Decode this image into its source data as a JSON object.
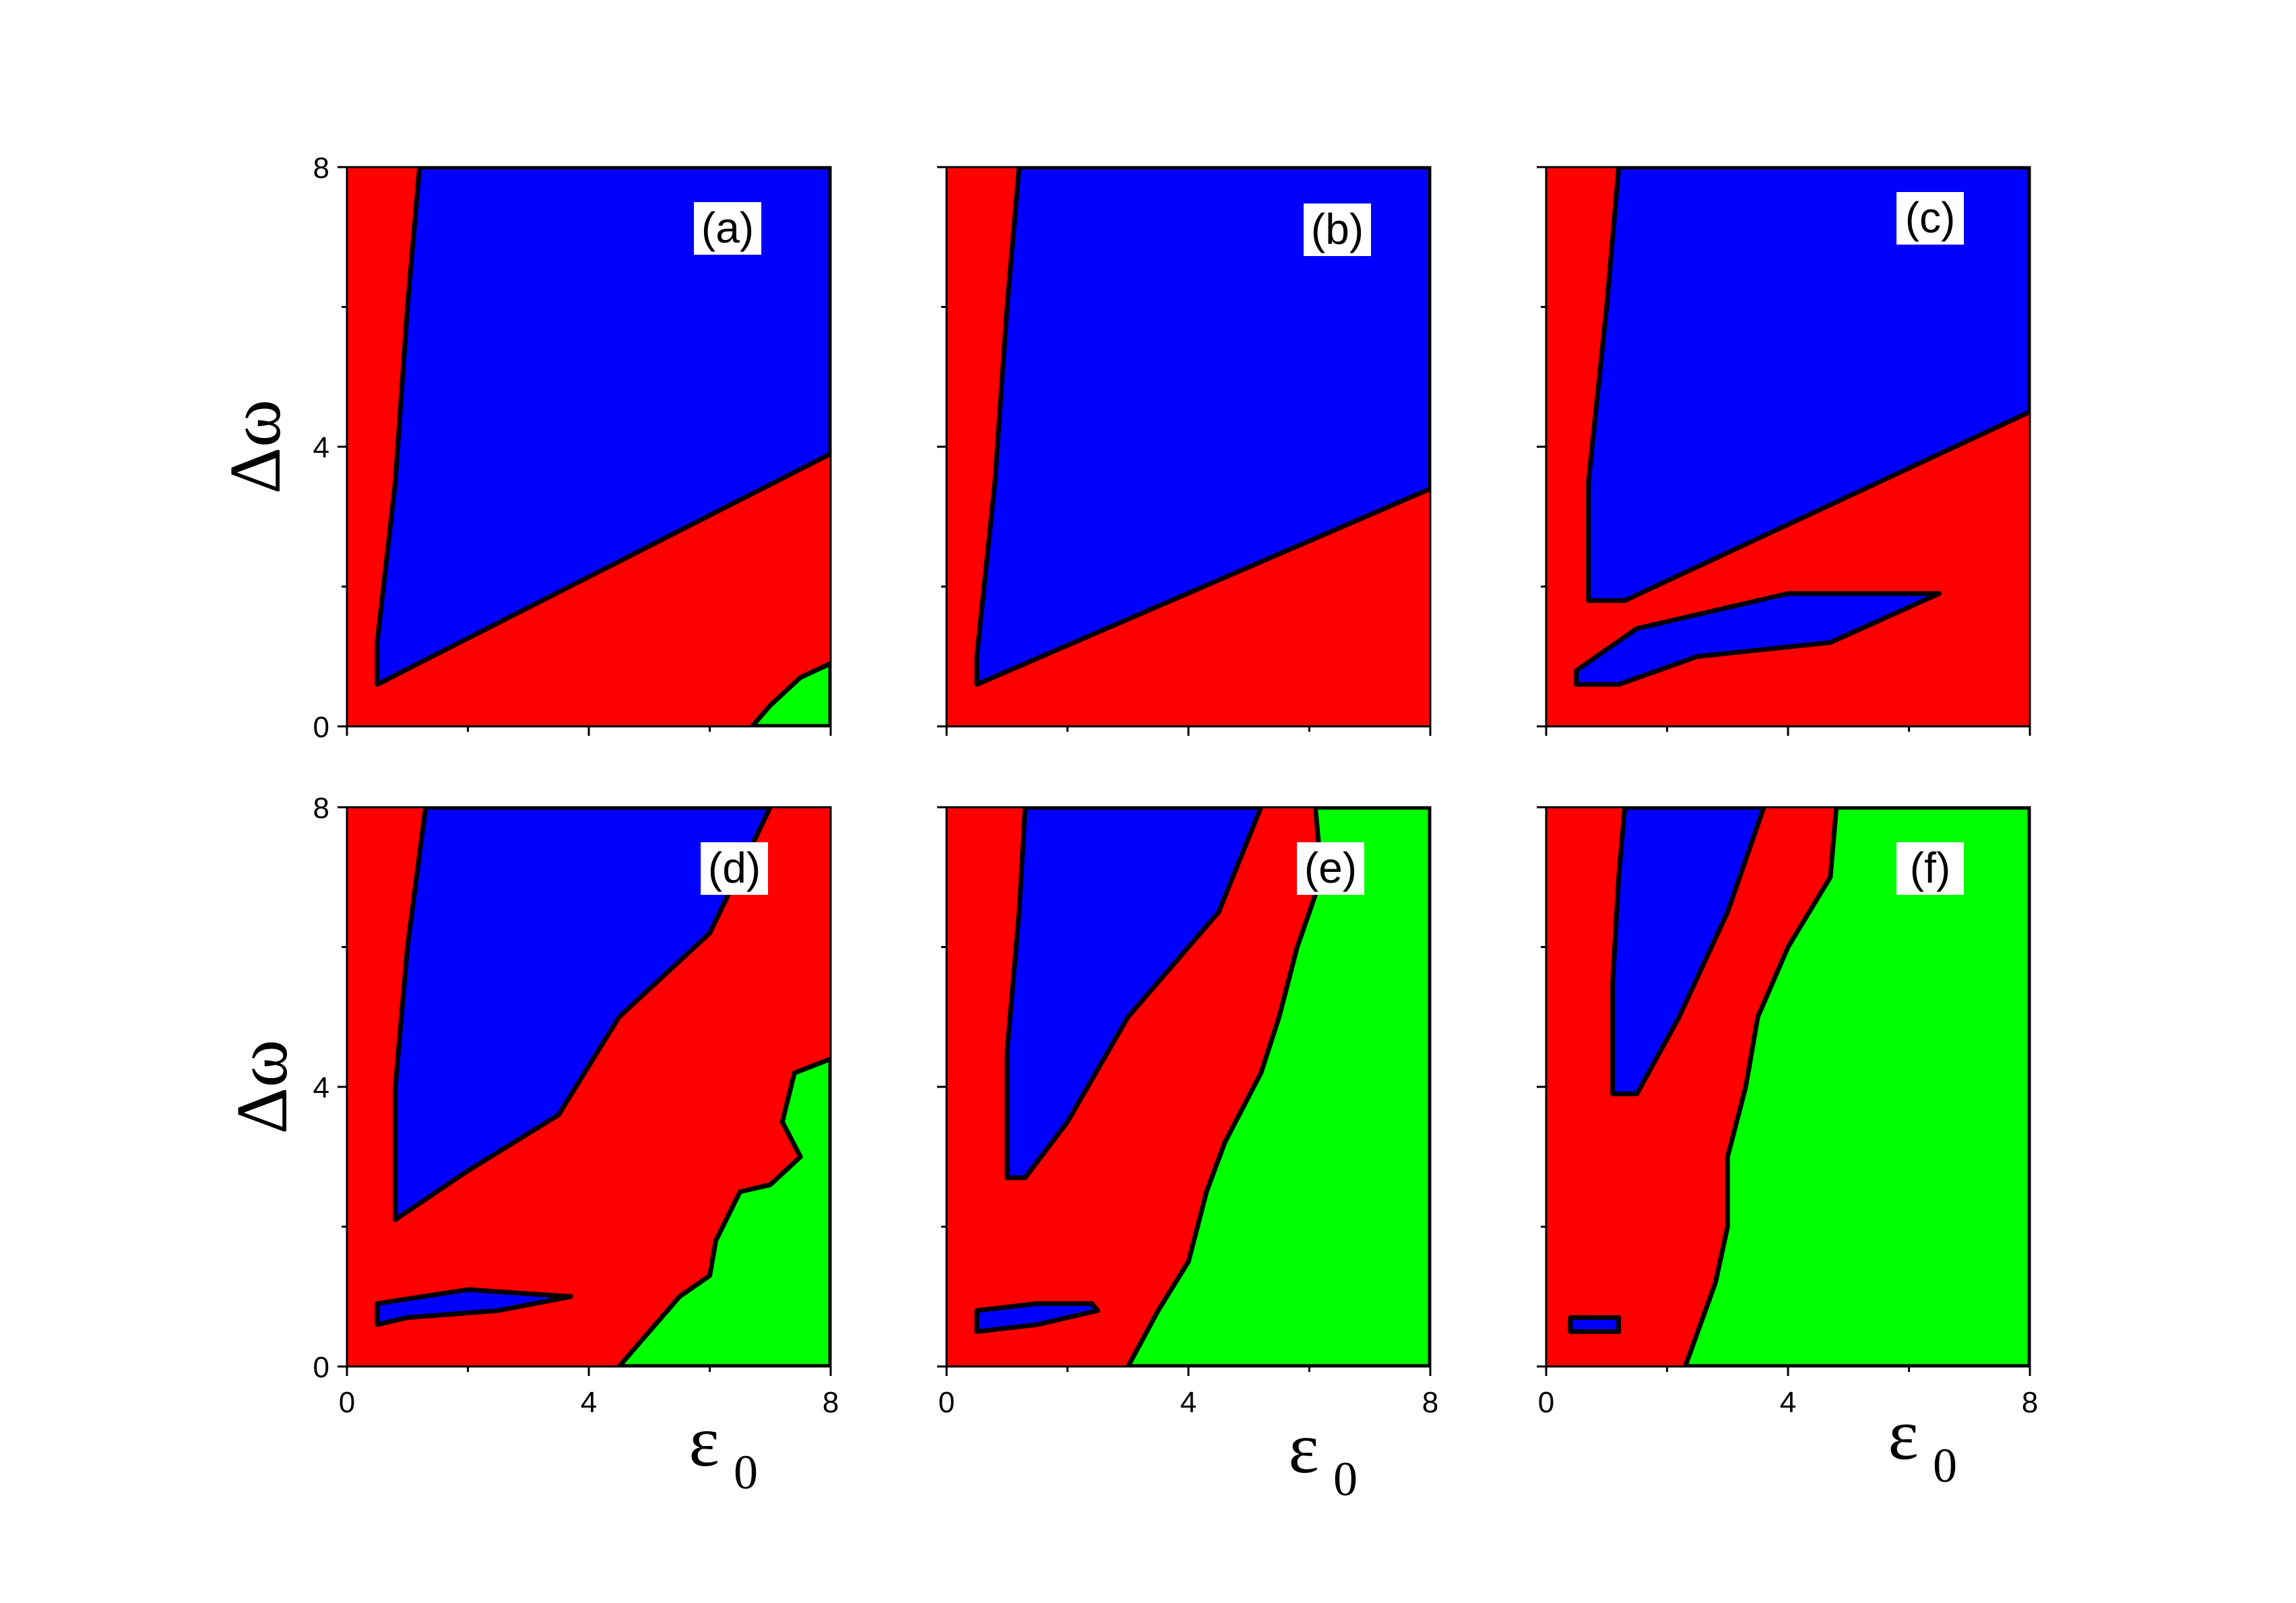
{
  "chart_data": {
    "type": "heatmap",
    "layout": "2x3 grid of panels",
    "xlabel": "ε",
    "xlabel_subscript": "0",
    "ylabel": "Δω",
    "xlim": [
      0,
      8
    ],
    "ylim": [
      0,
      8
    ],
    "x_ticks": [
      "0",
      "4",
      "8"
    ],
    "y_ticks": [
      "0",
      "4",
      "8"
    ],
    "colors": {
      "red": "#ff0000",
      "blue": "#0000ff",
      "green": "#00ff00",
      "boundary": "#000000"
    },
    "panels": [
      {
        "label": "(a)",
        "regions": [
          {
            "color": "red",
            "polygon": [
              [
                0,
                0
              ],
              [
                8,
                0
              ],
              [
                8,
                8
              ],
              [
                0,
                8
              ]
            ]
          },
          {
            "color": "blue",
            "polygon": [
              [
                1.2,
                8
              ],
              [
                8,
                8
              ],
              [
                8,
                3.9
              ],
              [
                0.5,
                0.6
              ],
              [
                0.5,
                1.2
              ],
              [
                0.8,
                3.5
              ],
              [
                1.0,
                6
              ]
            ]
          },
          {
            "color": "green",
            "polygon": [
              [
                6.7,
                0
              ],
              [
                8,
                0
              ],
              [
                8,
                0.9
              ],
              [
                7.5,
                0.7
              ],
              [
                7.0,
                0.3
              ]
            ]
          }
        ]
      },
      {
        "label": "(b)",
        "regions": [
          {
            "color": "red",
            "polygon": [
              [
                0,
                0
              ],
              [
                8,
                0
              ],
              [
                8,
                8
              ],
              [
                0,
                8
              ]
            ]
          },
          {
            "color": "blue",
            "polygon": [
              [
                1.2,
                8
              ],
              [
                8,
                8
              ],
              [
                8,
                3.4
              ],
              [
                0.5,
                0.6
              ],
              [
                0.5,
                1.0
              ],
              [
                0.8,
                3.5
              ],
              [
                1.0,
                6
              ]
            ]
          }
        ]
      },
      {
        "label": "(c)",
        "regions": [
          {
            "color": "red",
            "polygon": [
              [
                0,
                0
              ],
              [
                8,
                0
              ],
              [
                8,
                8
              ],
              [
                0,
                8
              ]
            ]
          },
          {
            "color": "blue",
            "polygon": [
              [
                1.2,
                8
              ],
              [
                8,
                8
              ],
              [
                8,
                4.5
              ],
              [
                1.3,
                1.8
              ],
              [
                0.7,
                1.8
              ],
              [
                0.7,
                3.5
              ],
              [
                1.0,
                6
              ]
            ]
          },
          {
            "color": "blue",
            "polygon": [
              [
                0.5,
                0.6
              ],
              [
                1.2,
                0.6
              ],
              [
                2.5,
                1.0
              ],
              [
                4.7,
                1.2
              ],
              [
                6.5,
                1.9
              ],
              [
                4.0,
                1.9
              ],
              [
                1.5,
                1.4
              ],
              [
                0.5,
                0.8
              ]
            ]
          }
        ]
      },
      {
        "label": "(d)",
        "regions": [
          {
            "color": "red",
            "polygon": [
              [
                0,
                0
              ],
              [
                8,
                0
              ],
              [
                8,
                8
              ],
              [
                0,
                8
              ]
            ]
          },
          {
            "color": "blue",
            "polygon": [
              [
                1.3,
                8
              ],
              [
                7.0,
                8
              ],
              [
                6.0,
                6.2
              ],
              [
                4.5,
                5.0
              ],
              [
                3.5,
                3.6
              ],
              [
                2.0,
                2.8
              ],
              [
                0.8,
                2.1
              ],
              [
                0.8,
                4.0
              ],
              [
                1.0,
                6.0
              ]
            ]
          },
          {
            "color": "blue",
            "polygon": [
              [
                0.5,
                0.6
              ],
              [
                1.0,
                0.7
              ],
              [
                2.5,
                0.8
              ],
              [
                3.7,
                1.0
              ],
              [
                2.0,
                1.1
              ],
              [
                0.5,
                0.9
              ]
            ]
          },
          {
            "color": "green",
            "polygon": [
              [
                4.5,
                0
              ],
              [
                8,
                0
              ],
              [
                8,
                4.4
              ],
              [
                7.4,
                4.2
              ],
              [
                7.2,
                3.5
              ],
              [
                7.5,
                3.0
              ],
              [
                7.0,
                2.6
              ],
              [
                6.5,
                2.5
              ],
              [
                6.1,
                1.8
              ],
              [
                6.0,
                1.3
              ],
              [
                5.5,
                1.0
              ],
              [
                5.0,
                0.5
              ]
            ]
          }
        ]
      },
      {
        "label": "(e)",
        "regions": [
          {
            "color": "red",
            "polygon": [
              [
                0,
                0
              ],
              [
                8,
                0
              ],
              [
                8,
                8
              ],
              [
                0,
                8
              ]
            ]
          },
          {
            "color": "blue",
            "polygon": [
              [
                1.3,
                8
              ],
              [
                5.2,
                8
              ],
              [
                4.5,
                6.5
              ],
              [
                3.0,
                5.0
              ],
              [
                2.0,
                3.5
              ],
              [
                1.3,
                2.7
              ],
              [
                1.0,
                2.7
              ],
              [
                1.0,
                4.5
              ],
              [
                1.2,
                6.5
              ]
            ]
          },
          {
            "color": "blue",
            "polygon": [
              [
                0.5,
                0.5
              ],
              [
                1.5,
                0.6
              ],
              [
                2.5,
                0.8
              ],
              [
                2.4,
                0.9
              ],
              [
                1.5,
                0.9
              ],
              [
                0.5,
                0.8
              ]
            ]
          },
          {
            "color": "green",
            "polygon": [
              [
                3.0,
                0
              ],
              [
                8,
                0
              ],
              [
                8,
                8
              ],
              [
                6.1,
                8
              ],
              [
                6.2,
                7.0
              ],
              [
                5.8,
                6.0
              ],
              [
                5.5,
                5.0
              ],
              [
                5.2,
                4.2
              ],
              [
                4.6,
                3.2
              ],
              [
                4.3,
                2.5
              ],
              [
                4.0,
                1.5
              ],
              [
                3.5,
                0.8
              ]
            ]
          }
        ]
      },
      {
        "label": "(f)",
        "regions": [
          {
            "color": "red",
            "polygon": [
              [
                0,
                0
              ],
              [
                8,
                0
              ],
              [
                8,
                8
              ],
              [
                0,
                8
              ]
            ]
          },
          {
            "color": "blue",
            "polygon": [
              [
                1.3,
                8
              ],
              [
                3.6,
                8
              ],
              [
                3.0,
                6.5
              ],
              [
                2.2,
                5.0
              ],
              [
                1.5,
                3.9
              ],
              [
                1.1,
                3.9
              ],
              [
                1.1,
                5.5
              ],
              [
                1.2,
                7.0
              ]
            ]
          },
          {
            "color": "blue",
            "polygon": [
              [
                0.4,
                0.5
              ],
              [
                1.2,
                0.5
              ],
              [
                1.2,
                0.7
              ],
              [
                0.4,
                0.7
              ]
            ]
          },
          {
            "color": "green",
            "polygon": [
              [
                2.3,
                0
              ],
              [
                8,
                0
              ],
              [
                8,
                8
              ],
              [
                4.8,
                8
              ],
              [
                4.7,
                7.0
              ],
              [
                4.0,
                6.0
              ],
              [
                3.5,
                5.0
              ],
              [
                3.3,
                4.0
              ],
              [
                3.0,
                3.0
              ],
              [
                3.0,
                2.0
              ],
              [
                2.8,
                1.2
              ]
            ]
          }
        ]
      }
    ]
  }
}
